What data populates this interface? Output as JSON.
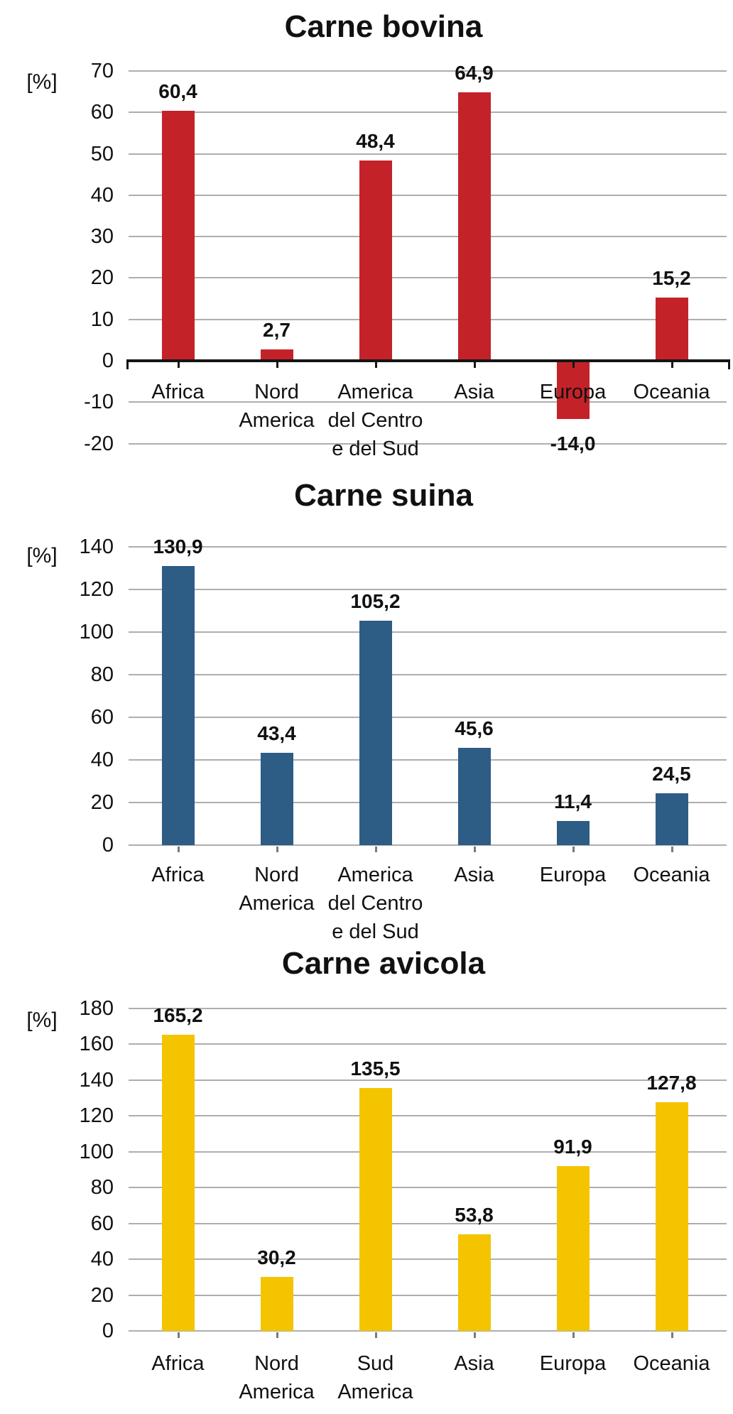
{
  "colors": {
    "grid": "#aeaeae",
    "axis": "#151515",
    "text": "#111111",
    "background": "#ffffff"
  },
  "chart_data": [
    {
      "type": "bar",
      "title": "Carne bovina",
      "ylabel": "[%]",
      "bar_color": "#c42229",
      "categories": [
        [
          "Africa"
        ],
        [
          "Nord",
          "America"
        ],
        [
          "America",
          "del Centro",
          "e del Sud"
        ],
        [
          "Asia"
        ],
        [
          "Europa"
        ],
        [
          "Oceania"
        ]
      ],
      "values": [
        60.4,
        2.7,
        48.4,
        64.9,
        -14.0,
        15.2
      ],
      "value_labels": [
        "60,4",
        "2,7",
        "48,4",
        "64,9",
        "-14,0",
        "15,2"
      ],
      "ylim": [
        -20,
        70
      ],
      "ytick_step": 10,
      "ytick_values": [
        70,
        60,
        50,
        40,
        30,
        20,
        10,
        0,
        -10,
        -20
      ],
      "ytick_labels": [
        "70",
        "60",
        "50",
        "40",
        "30",
        "20",
        "10",
        "0",
        "-10",
        "-20"
      ],
      "grid": true,
      "legend": "none"
    },
    {
      "type": "bar",
      "title": "Carne suina",
      "ylabel": "[%]",
      "bar_color": "#2d5c85",
      "categories": [
        [
          "Africa"
        ],
        [
          "Nord",
          "America"
        ],
        [
          "America",
          "del Centro",
          "e del Sud"
        ],
        [
          "Asia"
        ],
        [
          "Europa"
        ],
        [
          "Oceania"
        ]
      ],
      "values": [
        130.9,
        43.4,
        105.2,
        45.6,
        11.4,
        24.5
      ],
      "value_labels": [
        "130,9",
        "43,4",
        "105,2",
        "45,6",
        "11,4",
        "24,5"
      ],
      "ylim": [
        0,
        140
      ],
      "ytick_step": 20,
      "ytick_values": [
        140,
        120,
        100,
        80,
        60,
        40,
        20,
        0
      ],
      "ytick_labels": [
        "140",
        "120",
        "100",
        "80",
        "60",
        "40",
        "20",
        "0"
      ],
      "grid": true,
      "legend": "none"
    },
    {
      "type": "bar",
      "title": "Carne avicola",
      "ylabel": "[%]",
      "bar_color": "#f4c400",
      "categories": [
        [
          "Africa"
        ],
        [
          "Nord",
          "America"
        ],
        [
          "Sud",
          "America"
        ],
        [
          "Asia"
        ],
        [
          "Europa"
        ],
        [
          "Oceania"
        ]
      ],
      "values": [
        165.2,
        30.2,
        135.5,
        53.8,
        91.9,
        127.8
      ],
      "value_labels": [
        "165,2",
        "30,2",
        "135,5",
        "53,8",
        "91,9",
        "127,8"
      ],
      "ylim": [
        0,
        180
      ],
      "ytick_step": 20,
      "ytick_values": [
        180,
        160,
        140,
        120,
        100,
        80,
        60,
        40,
        20,
        0
      ],
      "ytick_labels": [
        "180",
        "160",
        "140",
        "120",
        "100",
        "80",
        "60",
        "40",
        "20",
        "0"
      ],
      "grid": true,
      "legend": "none"
    }
  ]
}
